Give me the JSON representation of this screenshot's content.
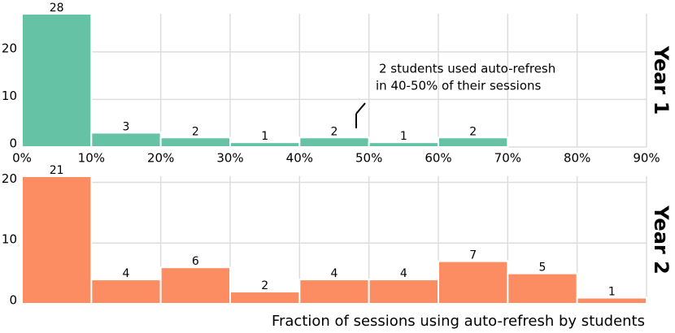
{
  "chart_data": [
    {
      "type": "histogram",
      "side_label": "Year 1",
      "bins": [
        0,
        10,
        20,
        30,
        40,
        50,
        60,
        70,
        80,
        90
      ],
      "values": [
        28,
        3,
        2,
        1,
        2,
        1,
        2,
        0,
        0
      ],
      "color": "#66c2a5",
      "xlim": [
        0,
        90
      ],
      "xticks": [
        {
          "value": 0,
          "label": "0%"
        },
        {
          "value": 10,
          "label": "10%"
        },
        {
          "value": 20,
          "label": "20%"
        },
        {
          "value": 30,
          "label": "30%"
        },
        {
          "value": 40,
          "label": "40%"
        },
        {
          "value": 50,
          "label": "50%"
        },
        {
          "value": 60,
          "label": "60%"
        },
        {
          "value": 70,
          "label": "70%"
        },
        {
          "value": 80,
          "label": "80%"
        },
        {
          "value": 90,
          "label": "90%"
        }
      ],
      "ylim": [
        0,
        28
      ],
      "yticks": [
        0,
        10,
        20
      ],
      "grid": true,
      "annotation": [
        "2 students used auto-refresh",
        "in 40-50% of their sessions"
      ]
    },
    {
      "type": "histogram",
      "side_label": "Year 2",
      "bins": [
        0,
        10,
        20,
        30,
        40,
        50,
        60,
        70,
        80,
        90
      ],
      "values": [
        21,
        4,
        6,
        2,
        4,
        4,
        7,
        5,
        1
      ],
      "color": "#fc8d62",
      "xlim": [
        0,
        90
      ],
      "xticks": [
        0,
        10,
        20,
        30,
        40,
        50,
        60,
        70,
        80,
        90
      ],
      "ylim": [
        0,
        21
      ],
      "yticks": [
        0,
        10,
        20
      ],
      "grid": true,
      "xlabel": "Fraction of sessions using auto-refresh by students"
    }
  ]
}
